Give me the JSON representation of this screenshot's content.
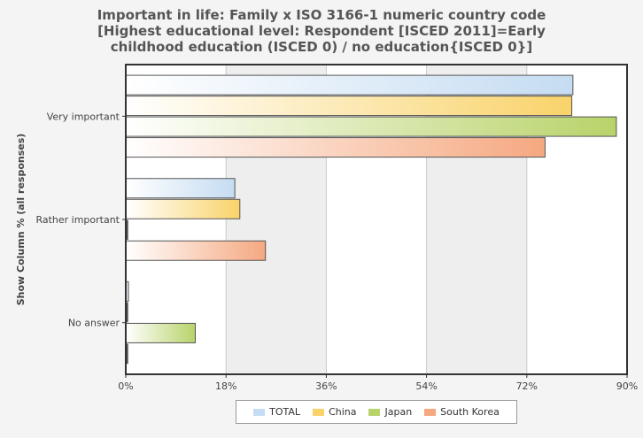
{
  "chart_data": {
    "type": "bar",
    "orientation": "horizontal",
    "title_lines": [
      "Important in life: Family x ISO 3166-1 numeric country code",
      "[Highest educational level: Respondent [ISCED 2011]=Early",
      "childhood education (ISCED 0) / no education{ISCED 0}]"
    ],
    "ylabel": "Show Column % (all responses)",
    "categories": [
      "Very important",
      "Rather important",
      "No answer"
    ],
    "xlim": [
      0,
      90
    ],
    "xticks": [
      "0%",
      "18%",
      "36%",
      "54%",
      "72%",
      "90%"
    ],
    "xtick_values": [
      0,
      18,
      36,
      54,
      72,
      90
    ],
    "grid": true,
    "legend_position": "bottom",
    "series": [
      {
        "name": "TOTAL",
        "values": [
          80.2,
          19.5,
          0.4
        ],
        "color": "#c5dcf2"
      },
      {
        "name": "China",
        "values": [
          80.0,
          20.4,
          0.0
        ],
        "color": "#f9d36a"
      },
      {
        "name": "Japan",
        "values": [
          88.0,
          0.0,
          12.4
        ],
        "color": "#b8d36a"
      },
      {
        "name": "South Korea",
        "values": [
          75.2,
          25.0,
          0.0
        ],
        "color": "#f5a880"
      }
    ]
  }
}
